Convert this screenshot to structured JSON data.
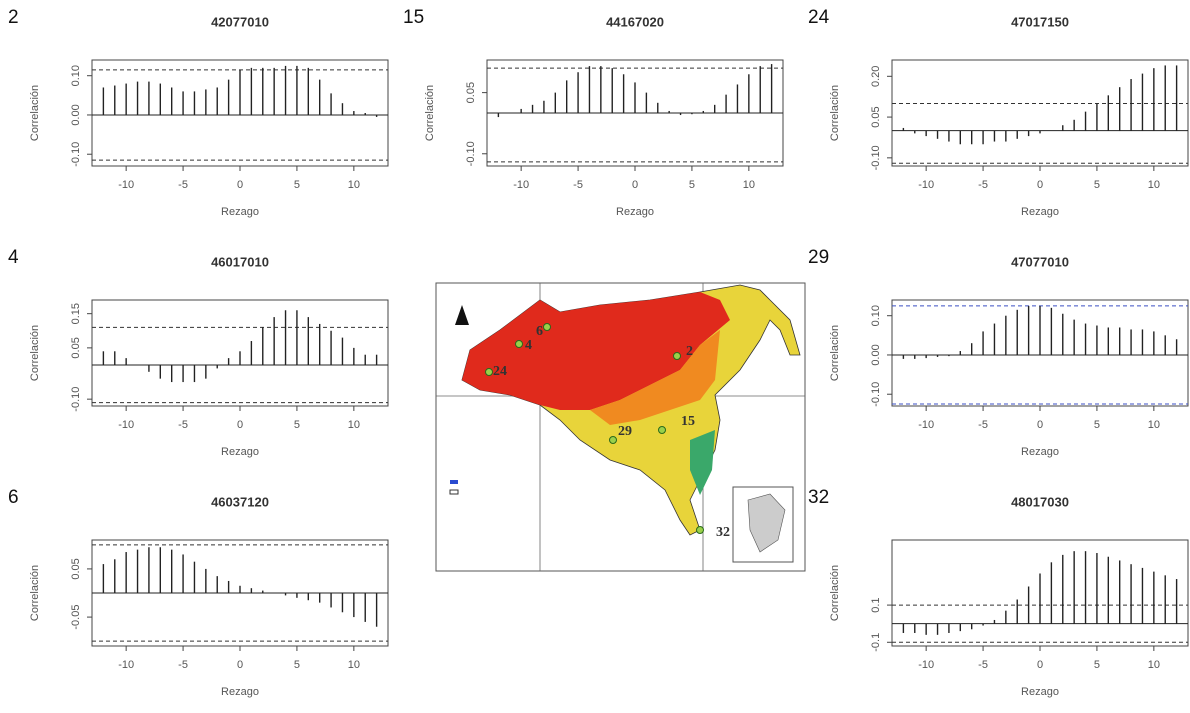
{
  "chart_data": [
    {
      "type": "stem",
      "panel": "2",
      "title": "42077010",
      "xlabel": "Rezago",
      "ylabel": "Correlación",
      "x": [
        -12,
        -11,
        -10,
        -9,
        -8,
        -7,
        -6,
        -5,
        -4,
        -3,
        -2,
        -1,
        0,
        1,
        2,
        3,
        4,
        5,
        6,
        7,
        8,
        9,
        10,
        11,
        12
      ],
      "values": [
        0.07,
        0.075,
        0.08,
        0.085,
        0.085,
        0.08,
        0.07,
        0.06,
        0.06,
        0.065,
        0.07,
        0.09,
        0.115,
        0.12,
        0.12,
        0.12,
        0.125,
        0.125,
        0.12,
        0.09,
        0.055,
        0.03,
        0.01,
        0.005,
        -0.005
      ],
      "conf_limits": [
        0.115,
        -0.115
      ],
      "xlim": [
        -13,
        13
      ],
      "ylim": [
        -0.13,
        0.14
      ],
      "xticks": [
        -10,
        -5,
        0,
        5,
        10
      ],
      "yticks": [
        {
          "value": -0.1,
          "label": "-0.10"
        },
        {
          "value": 0,
          "label": "0.00"
        },
        {
          "value": 0.1,
          "label": "0.10"
        }
      ],
      "color": "#222222"
    },
    {
      "type": "stem",
      "panel": "15",
      "title": "44167020",
      "xlabel": "Rezago",
      "ylabel": "Correlación",
      "x": [
        -12,
        -11,
        -10,
        -9,
        -8,
        -7,
        -6,
        -5,
        -4,
        -3,
        -2,
        -1,
        0,
        1,
        2,
        3,
        4,
        5,
        6,
        7,
        8,
        9,
        10,
        11,
        12
      ],
      "values": [
        -0.01,
        0.0,
        0.01,
        0.02,
        0.03,
        0.05,
        0.08,
        0.1,
        0.115,
        0.115,
        0.11,
        0.095,
        0.075,
        0.05,
        0.025,
        0.005,
        -0.005,
        -0.003,
        0.005,
        0.02,
        0.045,
        0.07,
        0.095,
        0.115,
        0.12
      ],
      "conf_limits": [
        0.11,
        -0.12
      ],
      "xlim": [
        -13,
        13
      ],
      "ylim": [
        -0.13,
        0.13
      ],
      "xticks": [
        -10,
        -5,
        0,
        5,
        10
      ],
      "yticks": [
        {
          "value": -0.1,
          "label": "-0.10"
        },
        0.05
      ],
      "color": "#222222"
    },
    {
      "type": "stem",
      "panel": "24",
      "title": "47017150",
      "xlabel": "Rezago",
      "ylabel": "Correlación",
      "x": [
        -12,
        -11,
        -10,
        -9,
        -8,
        -7,
        -6,
        -5,
        -4,
        -3,
        -2,
        -1,
        0,
        1,
        2,
        3,
        4,
        5,
        6,
        7,
        8,
        9,
        10,
        11,
        12
      ],
      "values": [
        0.01,
        -0.01,
        -0.02,
        -0.03,
        -0.04,
        -0.05,
        -0.05,
        -0.05,
        -0.04,
        -0.04,
        -0.03,
        -0.02,
        -0.01,
        0.0,
        0.02,
        0.04,
        0.07,
        0.1,
        0.13,
        0.16,
        0.19,
        0.21,
        0.23,
        0.24,
        0.24
      ],
      "conf_limits": [
        0.1,
        -0.12
      ],
      "xlim": [
        -13,
        13
      ],
      "ylim": [
        -0.13,
        0.26
      ],
      "xticks": [
        -10,
        -5,
        0,
        5,
        10
      ],
      "yticks": [
        {
          "value": -0.1,
          "label": "-0.10"
        },
        0.05,
        {
          "value": 0.2,
          "label": "0.20"
        }
      ],
      "color": "#222222"
    },
    {
      "type": "stem",
      "panel": "4",
      "title": "46017010",
      "xlabel": "Rezago",
      "ylabel": "Correlación",
      "x": [
        -12,
        -11,
        -10,
        -9,
        -8,
        -7,
        -6,
        -5,
        -4,
        -3,
        -2,
        -1,
        0,
        1,
        2,
        3,
        4,
        5,
        6,
        7,
        8,
        9,
        10,
        11,
        12
      ],
      "values": [
        0.04,
        0.04,
        0.02,
        0.0,
        -0.02,
        -0.04,
        -0.05,
        -0.05,
        -0.05,
        -0.04,
        -0.01,
        0.02,
        0.04,
        0.07,
        0.11,
        0.14,
        0.16,
        0.16,
        0.14,
        0.12,
        0.1,
        0.08,
        0.05,
        0.03,
        0.03
      ],
      "conf_limits": [
        0.11,
        -0.11
      ],
      "xlim": [
        -13,
        13
      ],
      "ylim": [
        -0.12,
        0.19
      ],
      "xticks": [
        -10,
        -5,
        0,
        5,
        10
      ],
      "yticks": [
        {
          "value": -0.1,
          "label": "-0.10"
        },
        0.05,
        0.15
      ],
      "color": "#222222"
    },
    {
      "type": "stem",
      "panel": "6",
      "title": "46037120",
      "xlabel": "Rezago",
      "ylabel": "Correlación",
      "x": [
        -12,
        -11,
        -10,
        -9,
        -8,
        -7,
        -6,
        -5,
        -4,
        -3,
        -2,
        -1,
        0,
        1,
        2,
        3,
        4,
        5,
        6,
        7,
        8,
        9,
        10,
        11,
        12
      ],
      "values": [
        0.06,
        0.07,
        0.085,
        0.09,
        0.095,
        0.095,
        0.09,
        0.08,
        0.065,
        0.05,
        0.035,
        0.025,
        0.015,
        0.01,
        0.005,
        0.0,
        -0.005,
        -0.01,
        -0.015,
        -0.02,
        -0.03,
        -0.04,
        -0.05,
        -0.06,
        -0.07
      ],
      "conf_limits": [
        0.1,
        -0.1
      ],
      "xlim": [
        -13,
        13
      ],
      "ylim": [
        -0.11,
        0.11
      ],
      "xticks": [
        -10,
        -5,
        0,
        5,
        10
      ],
      "yticks": [
        -0.05,
        0.05
      ],
      "color": "#222222"
    },
    {
      "type": "stem",
      "panel": "29",
      "title": "47077010",
      "xlabel": "Rezago",
      "ylabel": "Correlación",
      "x": [
        -12,
        -11,
        -10,
        -9,
        -8,
        -7,
        -6,
        -5,
        -4,
        -3,
        -2,
        -1,
        0,
        1,
        2,
        3,
        4,
        5,
        6,
        7,
        8,
        9,
        10,
        11,
        12
      ],
      "values": [
        -0.01,
        -0.01,
        -0.008,
        -0.005,
        -0.003,
        0.01,
        0.03,
        0.06,
        0.08,
        0.1,
        0.115,
        0.125,
        0.125,
        0.12,
        0.105,
        0.09,
        0.08,
        0.075,
        0.07,
        0.07,
        0.065,
        0.065,
        0.06,
        0.05,
        0.04
      ],
      "conf_limits": [
        0.125,
        -0.125
      ],
      "conf_color": "#3b4fc4",
      "xlim": [
        -13,
        13
      ],
      "ylim": [
        -0.13,
        0.14
      ],
      "xticks": [
        -10,
        -5,
        0,
        5,
        10
      ],
      "yticks": [
        {
          "value": -0.1,
          "label": "-0.10"
        },
        {
          "value": 0,
          "label": "0.00"
        },
        {
          "value": 0.1,
          "label": "0.10"
        }
      ],
      "color": "#222222"
    },
    {
      "type": "stem",
      "panel": "32",
      "title": "48017030",
      "xlabel": "Rezago",
      "ylabel": "Correlación",
      "x": [
        -12,
        -11,
        -10,
        -9,
        -8,
        -7,
        -6,
        -5,
        -4,
        -3,
        -2,
        -1,
        0,
        1,
        2,
        3,
        4,
        5,
        6,
        7,
        8,
        9,
        10,
        11,
        12
      ],
      "values": [
        -0.05,
        -0.05,
        -0.06,
        -0.06,
        -0.05,
        -0.04,
        -0.03,
        -0.01,
        0.02,
        0.07,
        0.13,
        0.2,
        0.27,
        0.33,
        0.37,
        0.39,
        0.39,
        0.38,
        0.36,
        0.34,
        0.32,
        0.3,
        0.28,
        0.26,
        0.24
      ],
      "conf_limits": [
        0.1,
        -0.1
      ],
      "xlim": [
        -13,
        13
      ],
      "ylim": [
        -0.12,
        0.45
      ],
      "xticks": [
        -10,
        -5,
        0,
        5,
        10
      ],
      "yticks": [
        -0.1,
        0.1
      ],
      "color": "#222222"
    }
  ],
  "map": {
    "labels": [
      "24",
      "4",
      "6",
      "2",
      "15",
      "29",
      "32"
    ]
  }
}
